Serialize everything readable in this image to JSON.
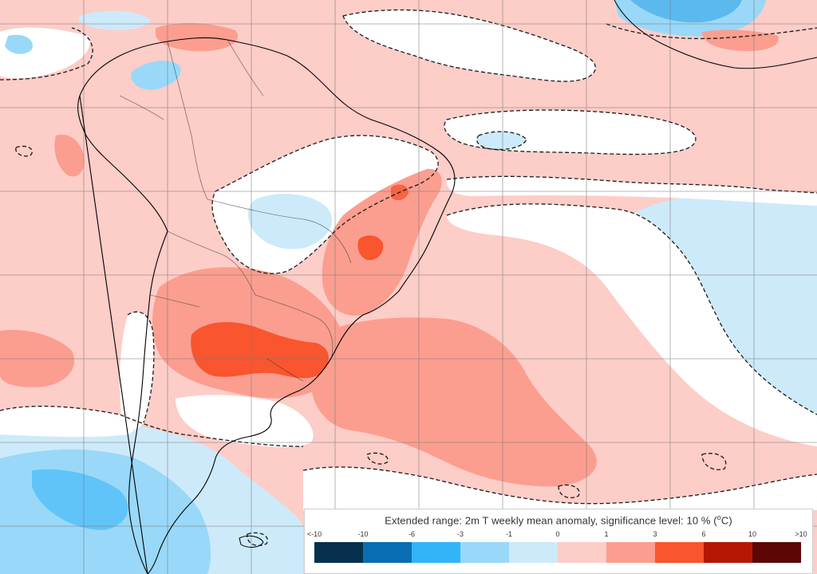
{
  "legend": {
    "title": "Extended range: 2m T weekly mean anomaly, significance level: 10 %",
    "unit": "C",
    "ticks": [
      "<-10",
      "-10",
      "-6",
      "-3",
      "-1",
      "0",
      "1",
      "3",
      "6",
      "10",
      ">10"
    ],
    "colors": [
      "#06304e",
      "#0a6eb4",
      "#33b4f8",
      "#99d8f8",
      "#cdeafa",
      "#fdcdc8",
      "#fb9e8f",
      "#f9552e",
      "#b61604",
      "#5c0606"
    ]
  },
  "map_colors": {
    "ocean_neutral": "#ffffff",
    "weak_warm": "#fdcdc8",
    "moderate_warm": "#fb9e8f",
    "strong_warm": "#f9552e",
    "weak_cold": "#cdeafa",
    "moderate_cold": "#99d8f8",
    "strong_cold": "#33b4f8",
    "coastline": "#000000",
    "grid": "#7a7a7a",
    "significance_contour": "#1a1a1a"
  },
  "map": {
    "region": "South America and surrounding oceans",
    "parameter": "2m temperature weekly mean anomaly"
  }
}
